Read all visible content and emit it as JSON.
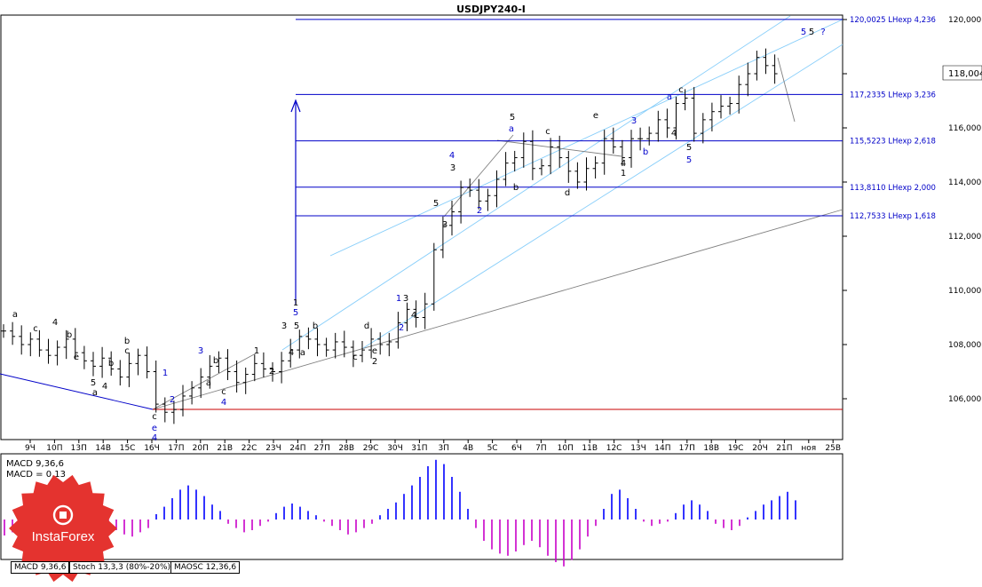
{
  "window": {
    "title": "USDJPY240-I",
    "current_price": "118,004",
    "colors": {
      "bar": "#000000",
      "level": "#0000c8",
      "channel": "#87cefa",
      "trend": "#808080",
      "support": "#c80000",
      "macd_pos": "#0000ff",
      "macd_neg": "#c800c8"
    }
  },
  "chart_data": [
    {
      "type": "ohlc",
      "title": "USDJPY240-I",
      "ylim": [
        105000,
        120500
      ],
      "y_ticks": [
        "106,000",
        "108,000",
        "110,000",
        "112,000",
        "114,000",
        "116,000",
        "118,000",
        "120,000"
      ],
      "x_ticks": [
        "9Ч",
        "10П",
        "13П",
        "14В",
        "15С",
        "16Ч",
        "17П",
        "20П",
        "21В",
        "22С",
        "23Ч",
        "24П",
        "27П",
        "28В",
        "29С",
        "30Ч",
        "31П",
        "3П",
        "4В",
        "5С",
        "6Ч",
        "7П",
        "10П",
        "11В",
        "12С",
        "13Ч",
        "14П",
        "17П",
        "18В",
        "19С",
        "20Ч",
        "21П",
        "ноя",
        "25В"
      ],
      "closes": [
        108.5,
        108.3,
        108.0,
        108.2,
        107.8,
        107.6,
        107.9,
        108.2,
        107.7,
        107.4,
        107.2,
        107.5,
        107.1,
        106.8,
        107.3,
        107.6,
        107.0,
        105.8,
        105.5,
        105.6,
        106.1,
        106.4,
        106.8,
        107.2,
        107.5,
        107.0,
        106.6,
        106.9,
        107.3,
        107.1,
        107.0,
        107.4,
        107.8,
        108.3,
        108.2,
        108.0,
        107.8,
        108.1,
        107.9,
        107.6,
        107.8,
        108.2,
        108.0,
        108.1,
        108.8,
        109.3,
        109.0,
        109.5,
        111.5,
        112.4,
        112.9,
        113.8,
        113.7,
        113.3,
        113.5,
        114.1,
        114.7,
        114.9,
        115.5,
        114.5,
        114.6,
        115.3,
        114.9,
        114.4,
        114.0,
        114.5,
        114.7,
        115.6,
        115.3,
        114.9,
        115.6,
        115.6,
        115.8,
        116.3,
        116.0,
        116.9,
        117.1,
        115.8,
        116.3,
        116.6,
        116.8,
        116.9,
        117.6,
        118.0,
        118.6,
        118.3,
        118.0
      ],
      "horizontal_levels": [
        {
          "price": 120002.5,
          "label": "120,0025 LHexp 4,236"
        },
        {
          "price": 117233.5,
          "label": "117,2335 LHexp 3,236"
        },
        {
          "price": 115522.3,
          "label": "115,5223 LHexp 2,618"
        },
        {
          "price": 113811.0,
          "label": "113,8110 LHexp 2,000"
        },
        {
          "price": 112753.3,
          "label": "112,7533 LHexp 1,618"
        }
      ],
      "wave_labels": [
        "a",
        "c",
        "4",
        "b",
        "5",
        "e",
        "4",
        "a",
        "b",
        "c",
        "b",
        "1",
        "2",
        "3",
        "a",
        "b",
        "c",
        "4",
        "1",
        "2",
        "3",
        "4",
        "5",
        "1",
        "5",
        "b",
        "a",
        "c",
        "d",
        "e",
        "2",
        "1",
        "2",
        "3",
        "4",
        "5",
        "3",
        "4",
        "3",
        "5",
        "a",
        "b",
        "c",
        "d",
        "e",
        "4",
        "1",
        "2",
        "3",
        "b",
        "a",
        "c",
        "4",
        "5",
        "5",
        "5",
        "5",
        "?"
      ]
    },
    {
      "type": "bar",
      "title": "MACD 9,36,6",
      "subtitle": "MACD = 0,13",
      "values": [
        -15,
        -12,
        -8,
        -5,
        -3,
        -4,
        -2,
        -1,
        2,
        4,
        5,
        3,
        -2,
        -6,
        -10,
        -14,
        -16,
        -12,
        -8,
        5,
        12,
        20,
        28,
        32,
        28,
        22,
        14,
        8,
        -4,
        -8,
        -12,
        -10,
        -6,
        -2,
        6,
        12,
        15,
        12,
        8,
        4,
        -2,
        -6,
        -10,
        -14,
        -12,
        -8,
        -4,
        4,
        10,
        16,
        24,
        32,
        40,
        50,
        56,
        52,
        40,
        26,
        10,
        -8,
        -20,
        -28,
        -32,
        -34,
        -30,
        -24,
        -20,
        -26,
        -34,
        -40,
        -44,
        -38,
        -28,
        -16,
        -6,
        10,
        24,
        28,
        20,
        10,
        -2,
        -6,
        -4,
        -2,
        6,
        14,
        18,
        14,
        8,
        -4,
        -8,
        -10,
        -6,
        2,
        8,
        14,
        18,
        22,
        26,
        18
      ]
    }
  ],
  "tabs": [
    "MACD 9,36,6",
    "Stoch 13,3,3 (80%-20%)",
    "MAOSC 12,36,6"
  ],
  "logo": {
    "text": "InstaForex"
  }
}
